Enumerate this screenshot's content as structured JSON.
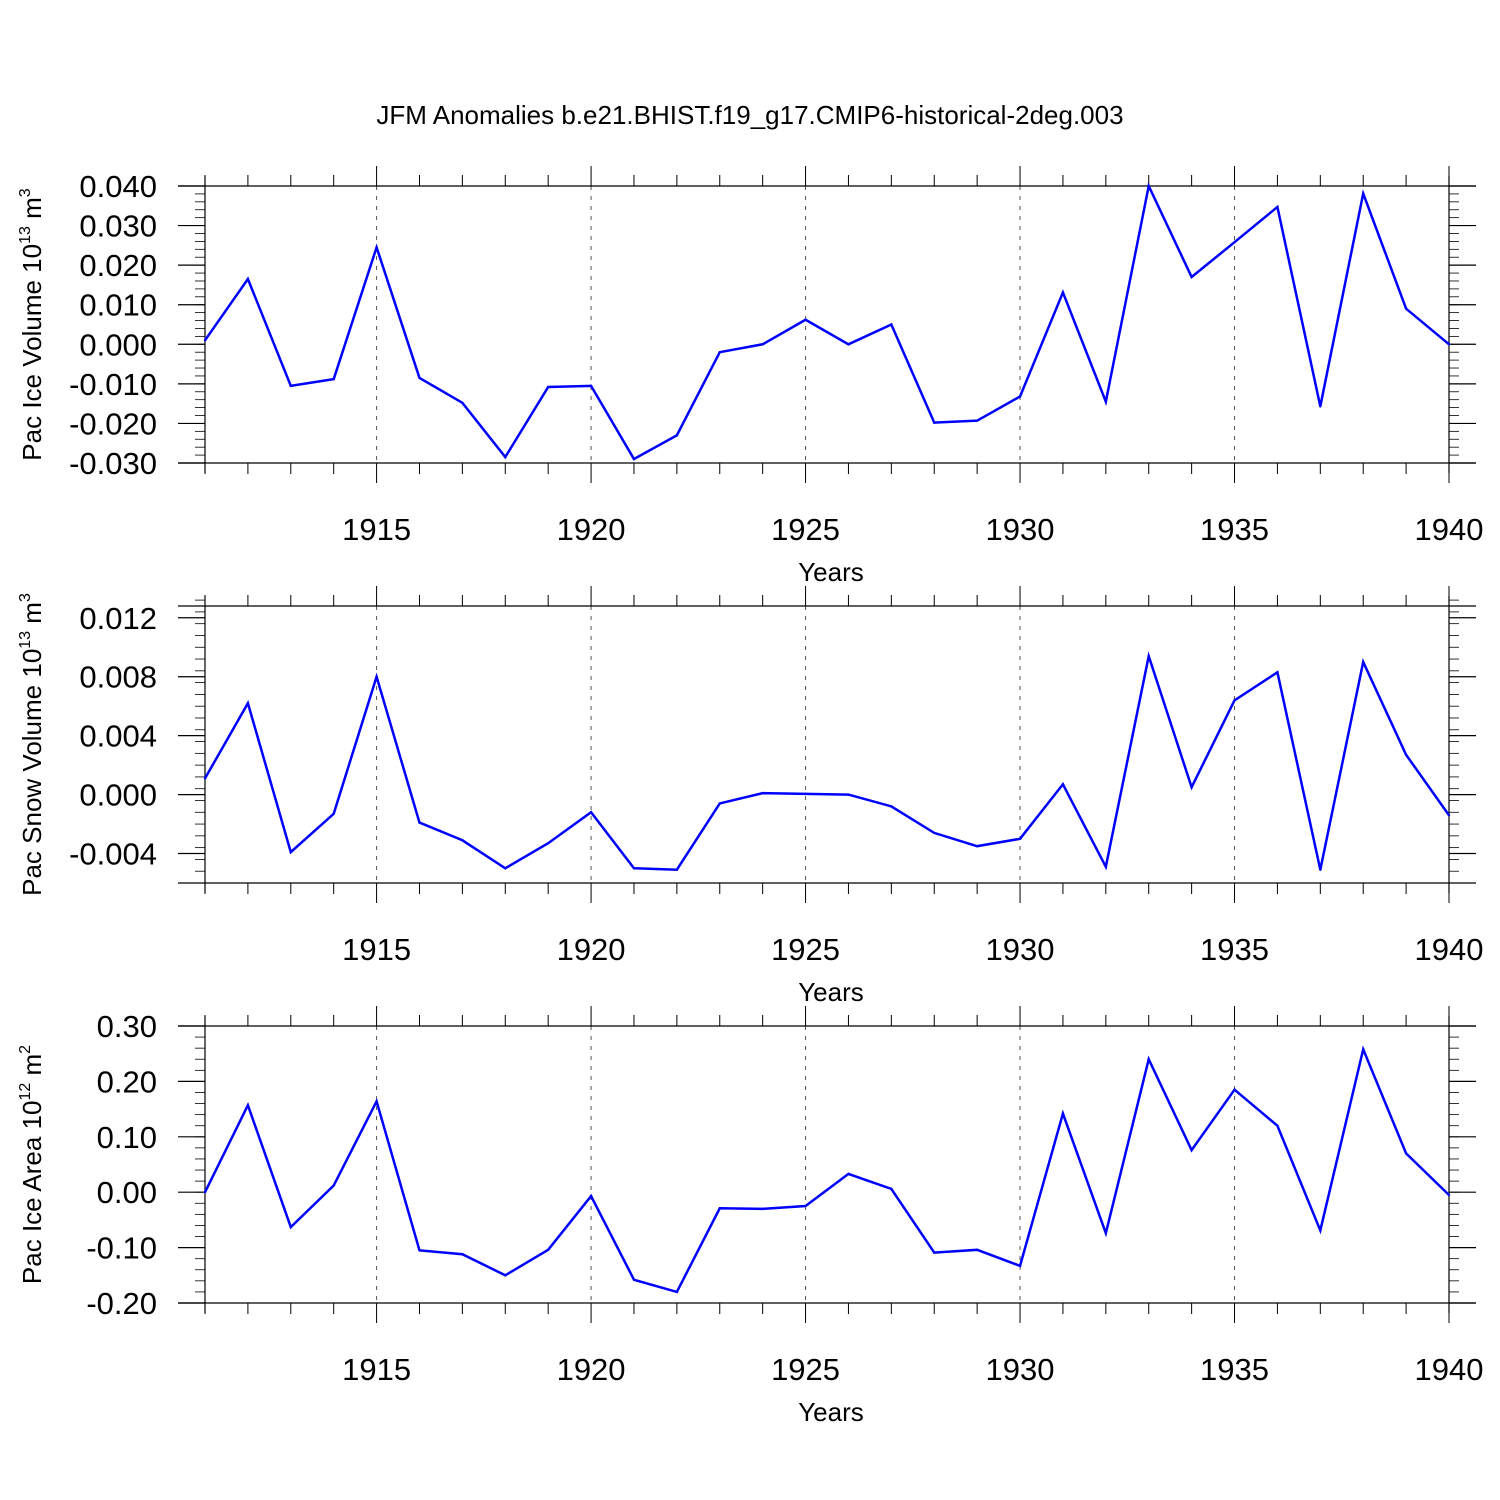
{
  "title": "JFM Anomalies b.e21.BHIST.f19_g17.CMIP6-historical-2deg.003",
  "line_color": "#0000ff",
  "chart_data": [
    {
      "type": "line",
      "ylabel": "Pac Ice Volume 10",
      "ylabel_exp": "13",
      "ylabel_unit": " m",
      "ylabel_unit_exp": "3",
      "xlabel": "Years",
      "xlim": [
        1911,
        1940
      ],
      "ylim": [
        -0.03,
        0.04
      ],
      "yticks": [
        -0.03,
        -0.02,
        -0.01,
        0.0,
        0.01,
        0.02,
        0.03,
        0.04
      ],
      "ytick_labels": [
        "-0.030",
        "-0.020",
        "-0.010",
        "0.000",
        "0.010",
        "0.020",
        "0.030",
        "0.040"
      ],
      "yminor_step": 0.002,
      "xticks": [
        1915,
        1920,
        1925,
        1930,
        1935,
        1940
      ],
      "xtick_labels": [
        "1915",
        "1920",
        "1925",
        "1930",
        "1935",
        "1940"
      ],
      "x": [
        1911,
        1912,
        1913,
        1914,
        1915,
        1916,
        1917,
        1918,
        1919,
        1920,
        1921,
        1922,
        1923,
        1924,
        1925,
        1926,
        1927,
        1928,
        1929,
        1930,
        1931,
        1932,
        1933,
        1934,
        1935,
        1936,
        1937,
        1938,
        1939,
        1940
      ],
      "series": [
        {
          "name": "Pac Ice Volume",
          "values": [
            0.001,
            0.0165,
            -0.0105,
            -0.0088,
            0.0245,
            -0.0085,
            -0.0148,
            -0.0285,
            -0.0108,
            -0.0105,
            -0.029,
            -0.023,
            -0.002,
            0.0,
            0.0062,
            0.0,
            0.005,
            -0.0198,
            -0.0193,
            -0.0132,
            0.0131,
            -0.0145,
            0.04,
            0.017,
            0.0258,
            0.0347,
            -0.0157,
            0.0381,
            0.009,
            0.0
          ]
        }
      ]
    },
    {
      "type": "line",
      "ylabel": "Pac Snow Volume 10",
      "ylabel_exp": "13",
      "ylabel_unit": " m",
      "ylabel_unit_exp": "3",
      "xlabel": "Years",
      "xlim": [
        1911,
        1940
      ],
      "ylim": [
        -0.006,
        0.0128
      ],
      "yticks": [
        -0.004,
        0.0,
        0.004,
        0.008,
        0.012
      ],
      "ytick_labels": [
        "-0.004",
        "0.000",
        "0.004",
        "0.008",
        "0.012"
      ],
      "yminor_step": 0.0008,
      "xticks": [
        1915,
        1920,
        1925,
        1930,
        1935,
        1940
      ],
      "xtick_labels": [
        "1915",
        "1920",
        "1925",
        "1930",
        "1935",
        "1940"
      ],
      "x": [
        1911,
        1912,
        1913,
        1914,
        1915,
        1916,
        1917,
        1918,
        1919,
        1920,
        1921,
        1922,
        1923,
        1924,
        1925,
        1926,
        1927,
        1928,
        1929,
        1930,
        1931,
        1932,
        1933,
        1934,
        1935,
        1936,
        1937,
        1938,
        1939,
        1940
      ],
      "series": [
        {
          "name": "Pac Snow Volume",
          "values": [
            0.0011,
            0.0062,
            -0.0039,
            -0.0013,
            0.008,
            -0.0019,
            -0.0031,
            -0.005,
            -0.0033,
            -0.0012,
            -0.005,
            -0.0051,
            -0.0006,
            0.0001,
            5e-05,
            0.0,
            -0.0008,
            -0.0026,
            -0.0035,
            -0.003,
            0.0007,
            -0.0049,
            0.0094,
            0.0005,
            0.0064,
            0.0083,
            -0.0051,
            0.009,
            0.0027,
            -0.0014
          ]
        }
      ]
    },
    {
      "type": "line",
      "ylabel": "Pac Ice Area 10",
      "ylabel_exp": "12",
      "ylabel_unit": " m",
      "ylabel_unit_exp": "2",
      "xlabel": "Years",
      "xlim": [
        1911,
        1940
      ],
      "ylim": [
        -0.2,
        0.3
      ],
      "yticks": [
        -0.2,
        -0.1,
        0.0,
        0.1,
        0.2,
        0.3
      ],
      "ytick_labels": [
        "-0.20",
        "-0.10",
        "0.00",
        "0.10",
        "0.20",
        "0.30"
      ],
      "yminor_step": 0.02,
      "xticks": [
        1915,
        1920,
        1925,
        1930,
        1935,
        1940
      ],
      "xtick_labels": [
        "1915",
        "1920",
        "1925",
        "1930",
        "1935",
        "1940"
      ],
      "x": [
        1911,
        1912,
        1913,
        1914,
        1915,
        1916,
        1917,
        1918,
        1919,
        1920,
        1921,
        1922,
        1923,
        1924,
        1925,
        1926,
        1927,
        1928,
        1929,
        1930,
        1931,
        1932,
        1933,
        1934,
        1935,
        1936,
        1937,
        1938,
        1939,
        1940
      ],
      "series": [
        {
          "name": "Pac Ice Area",
          "values": [
            0.0,
            0.157,
            -0.063,
            0.012,
            0.164,
            -0.105,
            -0.112,
            -0.15,
            -0.104,
            -0.007,
            -0.158,
            -0.18,
            -0.029,
            -0.03,
            -0.025,
            0.033,
            0.006,
            -0.109,
            -0.104,
            -0.133,
            0.142,
            -0.074,
            0.24,
            0.076,
            0.185,
            0.12,
            -0.069,
            0.258,
            0.07,
            -0.005
          ]
        }
      ]
    }
  ]
}
